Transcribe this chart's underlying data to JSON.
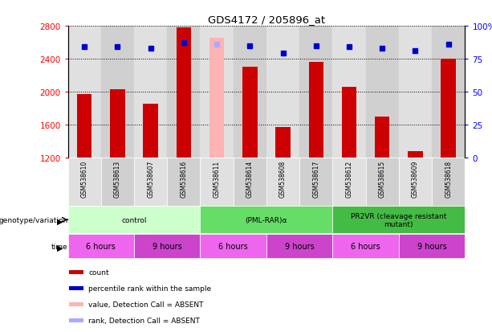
{
  "title": "GDS4172 / 205896_at",
  "samples": [
    "GSM538610",
    "GSM538613",
    "GSM538607",
    "GSM538616",
    "GSM538611",
    "GSM538614",
    "GSM538608",
    "GSM538617",
    "GSM538612",
    "GSM538615",
    "GSM538609",
    "GSM538618"
  ],
  "counts": [
    1970,
    2030,
    1850,
    2780,
    null,
    2300,
    1570,
    2360,
    2060,
    1700,
    1270,
    2400
  ],
  "absent_count": [
    null,
    null,
    null,
    null,
    2650,
    null,
    null,
    null,
    null,
    null,
    null,
    null
  ],
  "percentile_ranks": [
    84,
    84,
    83,
    87,
    null,
    85,
    79,
    85,
    84,
    83,
    81,
    86
  ],
  "absent_rank": [
    null,
    null,
    null,
    null,
    86,
    null,
    null,
    null,
    null,
    null,
    null,
    null
  ],
  "ylim_left": [
    1200,
    2800
  ],
  "ylim_right": [
    0,
    100
  ],
  "yticks_left": [
    1200,
    1600,
    2000,
    2400,
    2800
  ],
  "yticks_right": [
    0,
    25,
    50,
    75,
    100
  ],
  "bar_color": "#cc0000",
  "absent_bar_color": "#ffb3b3",
  "dot_color": "#0000cc",
  "absent_dot_color": "#aaaaff",
  "groups": [
    {
      "label": "control",
      "start": 0,
      "end": 4,
      "color": "#ccffcc"
    },
    {
      "label": "(PML-RAR)α",
      "start": 4,
      "end": 8,
      "color": "#66dd66"
    },
    {
      "label": "PR2VR (cleavage resistant\nmutant)",
      "start": 8,
      "end": 12,
      "color": "#44bb44"
    }
  ],
  "time_groups": [
    {
      "label": "6 hours",
      "start": 0,
      "end": 2,
      "color": "#ee66ee"
    },
    {
      "label": "9 hours",
      "start": 2,
      "end": 4,
      "color": "#cc44cc"
    },
    {
      "label": "6 hours",
      "start": 4,
      "end": 6,
      "color": "#ee66ee"
    },
    {
      "label": "9 hours",
      "start": 6,
      "end": 8,
      "color": "#cc44cc"
    },
    {
      "label": "6 hours",
      "start": 8,
      "end": 10,
      "color": "#ee66ee"
    },
    {
      "label": "9 hours",
      "start": 10,
      "end": 12,
      "color": "#cc44cc"
    }
  ],
  "legend_items": [
    {
      "label": "count",
      "color": "#cc0000"
    },
    {
      "label": "percentile rank within the sample",
      "color": "#0000cc"
    },
    {
      "label": "value, Detection Call = ABSENT",
      "color": "#ffb3b3"
    },
    {
      "label": "rank, Detection Call = ABSENT",
      "color": "#aaaaff"
    }
  ],
  "bg_color": "#ffffff",
  "bar_width": 0.45,
  "col_colors": [
    "#e0e0e0",
    "#d0d0d0"
  ]
}
